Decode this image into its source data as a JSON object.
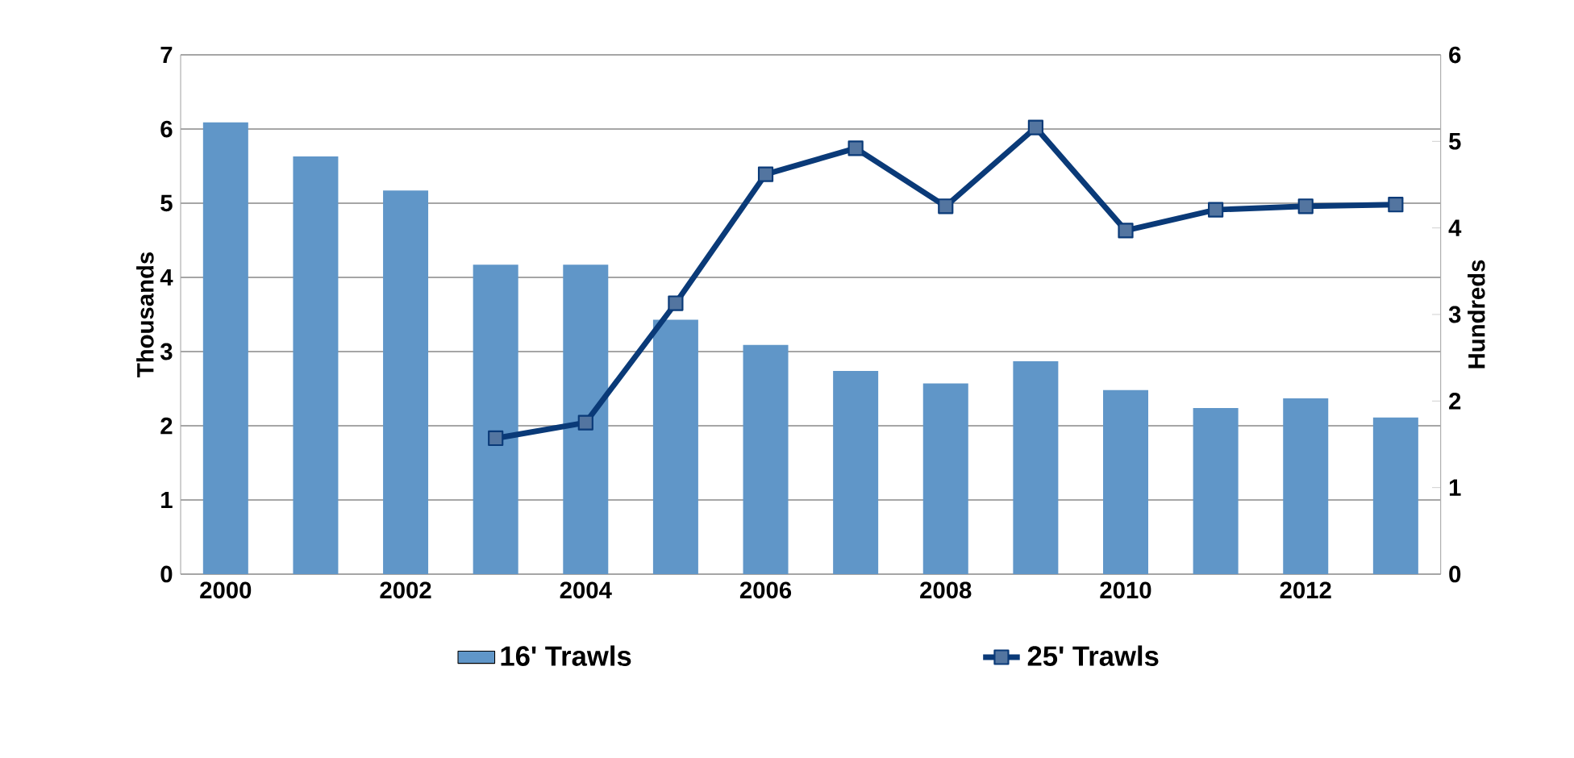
{
  "chart_data": {
    "type": "bar",
    "categories": [
      "2000",
      null,
      "2002",
      null,
      "2004",
      null,
      "2006",
      null,
      "2008",
      null,
      "2010",
      null,
      "2012",
      null
    ],
    "series": [
      {
        "name": "16' Trawls",
        "color": "#6096c8",
        "values": [
          6.09,
          5.63,
          5.17,
          4.17,
          4.17,
          3.43,
          3.09,
          2.74,
          2.57,
          2.87,
          2.48,
          2.24,
          2.37,
          2.11
        ]
      },
      {
        "name": "25' Trawls",
        "type": "line",
        "axis": "y2",
        "color": "#0a3a78",
        "marker": "square",
        "values": [
          null,
          null,
          null,
          1.57,
          1.75,
          3.13,
          4.62,
          4.92,
          4.25,
          5.16,
          3.97,
          4.21,
          4.25,
          4.27
        ]
      }
    ],
    "ylabel": "Thousands",
    "y2label": "Hundreds",
    "ylim": [
      0,
      7
    ],
    "yticks": [
      0,
      1,
      2,
      3,
      4,
      5,
      6,
      7
    ],
    "y2lim": [
      0,
      6
    ],
    "y2ticks": [
      0,
      1,
      2,
      3,
      4,
      5,
      6
    ],
    "grid": "y",
    "legend": "bottom"
  }
}
